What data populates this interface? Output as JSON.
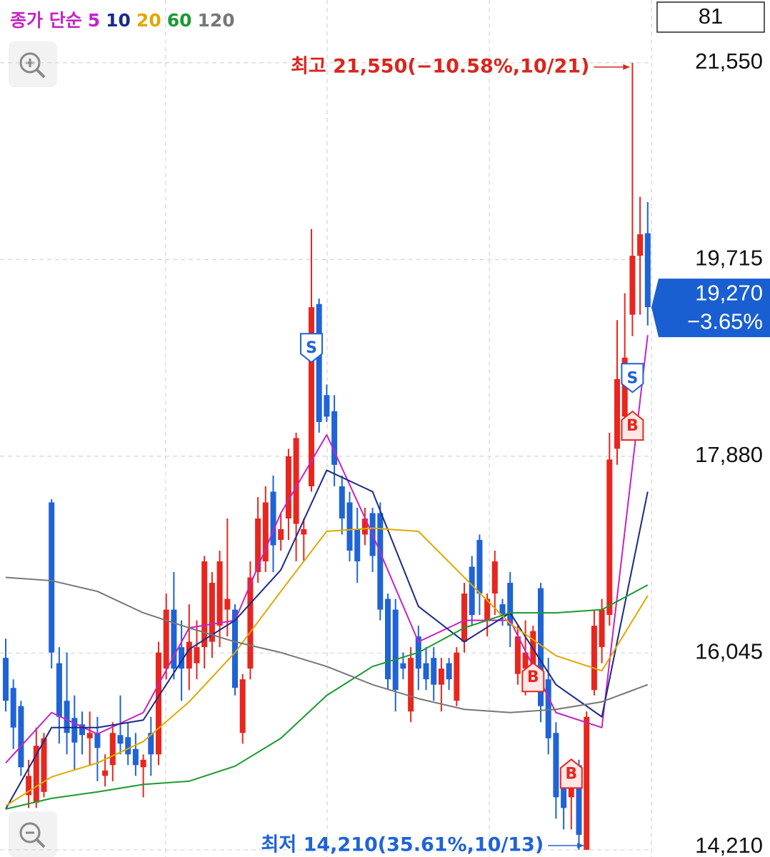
{
  "chart_data": {
    "type": "candlestick",
    "legend_title": "종가 단순",
    "top_box": "81",
    "ylim": [
      14143,
      22135
    ],
    "yticks": [
      {
        "value": 21550,
        "label": "21,550"
      },
      {
        "value": 19715,
        "label": "19,715"
      },
      {
        "value": 17880,
        "label": "17,880"
      },
      {
        "value": 16045,
        "label": "16,045"
      },
      {
        "value": 14210,
        "label": "14,210"
      }
    ],
    "grid": true,
    "up_color": "#e8261e",
    "down_color": "#1f63d6",
    "candles": {
      "open": [
        16000,
        15720,
        15550,
        14720,
        14650,
        14750,
        17450,
        15950,
        15600,
        15440,
        15380,
        15250,
        15300,
        14900,
        15000,
        15280,
        15260,
        15150,
        14980,
        15300,
        15100,
        15900,
        16450,
        16100,
        15900,
        15950,
        16100,
        16150,
        16300,
        16450,
        16450,
        15300,
        15900,
        16800,
        16900,
        17550,
        17100,
        17300,
        17250,
        17150,
        17600,
        19300,
        18450,
        18300,
        17600,
        17450,
        17200,
        17150,
        17350,
        17350,
        16550,
        16450,
        15950,
        15500,
        16200,
        15950,
        16000,
        15750,
        15950,
        15600,
        16150,
        16850,
        17100,
        16350,
        16600,
        16500,
        16700,
        15850,
        15900,
        15900,
        16650,
        15800,
        15300,
        14800,
        14700,
        15000,
        14210,
        15700,
        16100,
        16400,
        17950,
        18250,
        19200,
        19750,
        19960
      ],
      "high": [
        16180,
        15800,
        15600,
        15050,
        15350,
        15300,
        17480,
        16100,
        16050,
        15650,
        15500,
        15500,
        15450,
        15100,
        15400,
        15650,
        15400,
        15300,
        15100,
        15450,
        16150,
        16600,
        16800,
        16350,
        16500,
        16350,
        16950,
        16800,
        17000,
        17300,
        16500,
        15850,
        16900,
        17500,
        17600,
        17700,
        17350,
        17950,
        18100,
        17300,
        20000,
        19350,
        18550,
        18450,
        17700,
        17550,
        17400,
        17400,
        17400,
        17450,
        16600,
        16550,
        16050,
        16100,
        16300,
        16100,
        16100,
        16000,
        16000,
        16100,
        16700,
        16950,
        17150,
        16600,
        17000,
        16550,
        16800,
        16300,
        16350,
        16300,
        16700,
        16000,
        15400,
        14850,
        14900,
        15050,
        15500,
        16450,
        16550,
        18100,
        19150,
        19400,
        21550,
        20300,
        20250
      ],
      "low": [
        15500,
        15150,
        14900,
        14600,
        14600,
        14700,
        15900,
        15200,
        15100,
        14950,
        15100,
        15000,
        14850,
        14800,
        14850,
        15100,
        15000,
        14900,
        14700,
        14900,
        15000,
        15800,
        15800,
        15600,
        15700,
        15800,
        15900,
        16000,
        16100,
        16200,
        15650,
        15200,
        15800,
        16700,
        16800,
        16800,
        17000,
        17100,
        16900,
        16900,
        17550,
        18100,
        18200,
        17600,
        17150,
        16900,
        16700,
        17050,
        16800,
        16350,
        15700,
        15500,
        15800,
        15400,
        15700,
        15700,
        15600,
        15500,
        15700,
        15550,
        16050,
        16300,
        16400,
        16200,
        16400,
        16300,
        16100,
        15750,
        15650,
        15800,
        15400,
        15100,
        14500,
        14400,
        14400,
        14210,
        14210,
        15650,
        15950,
        16300,
        17800,
        18100,
        19000,
        19200,
        19100
      ],
      "close": [
        15600,
        15350,
        14980,
        14900,
        15180,
        15250,
        16050,
        15450,
        15300,
        15210,
        15280,
        15300,
        15160,
        14950,
        15300,
        15200,
        15100,
        15000,
        15050,
        15100,
        16050,
        16450,
        15900,
        15900,
        16150,
        16100,
        16900,
        16700,
        16900,
        16550,
        15720,
        15800,
        16750,
        17300,
        17450,
        17050,
        17200,
        17880,
        18050,
        17200,
        19270,
        18200,
        18250,
        17800,
        17300,
        17000,
        16900,
        17300,
        16950,
        16450,
        15800,
        15700,
        15900,
        16000,
        15900,
        15800,
        15750,
        15900,
        15800,
        16050,
        16600,
        16400,
        16600,
        16550,
        16900,
        16400,
        16300,
        16200,
        16050,
        16250,
        15550,
        15250,
        14700,
        14600,
        14800,
        14350,
        15450,
        16300,
        16450,
        17850,
        18600,
        18800,
        19750,
        19950,
        19270
      ]
    },
    "ma_x": [
      0,
      6,
      12,
      18,
      24,
      30,
      36,
      42,
      48,
      54,
      60,
      66,
      72,
      78,
      84
    ],
    "series": [
      {
        "name": "5",
        "color": "#c424c4",
        "values": [
          15020,
          15490,
          15290,
          15490,
          16280,
          16350,
          17350,
          18080,
          17150,
          16150,
          16350,
          16350,
          15490,
          15350,
          19010
        ]
      },
      {
        "name": "10",
        "color": "#1a2a8a",
        "values": [
          14590,
          15350,
          15350,
          15420,
          16080,
          16350,
          16820,
          17750,
          17550,
          16480,
          16150,
          16420,
          15750,
          15450,
          17550
        ]
      },
      {
        "name": "20",
        "color": "#e0a800",
        "values": [
          14620,
          14890,
          15020,
          15220,
          15590,
          16050,
          16620,
          17180,
          17210,
          17180,
          16750,
          16320,
          16020,
          15880,
          16580
        ]
      },
      {
        "name": "60",
        "color": "#1a9a30",
        "values": [
          14590,
          14690,
          14750,
          14820,
          14850,
          14990,
          15250,
          15650,
          15920,
          16050,
          16280,
          16420,
          16420,
          16450,
          16680
        ]
      },
      {
        "name": "120",
        "color": "#777777",
        "values": [
          16750,
          16720,
          16620,
          16420,
          16280,
          16150,
          16050,
          15920,
          15750,
          15620,
          15520,
          15490,
          15520,
          15590,
          15750
        ]
      }
    ],
    "signals": [
      {
        "label": "S",
        "index": 40,
        "price": 18890
      },
      {
        "label": "B",
        "index": 69,
        "price": 15820
      },
      {
        "label": "B",
        "index": 74,
        "price": 14920
      },
      {
        "label": "B",
        "index": 82,
        "price": 18165
      },
      {
        "label": "S",
        "index": 82,
        "price": 18610
      }
    ],
    "high_note": {
      "text": "최고 21,550(−10.58%,10/21)",
      "index": 82,
      "price": 21550
    },
    "low_note": {
      "text": "최저 14,210(35.61%,10/13)",
      "index": 76,
      "price": 14210
    },
    "current": {
      "price": 19270,
      "price_label": "19,270",
      "change_label": "−3.65%"
    }
  }
}
